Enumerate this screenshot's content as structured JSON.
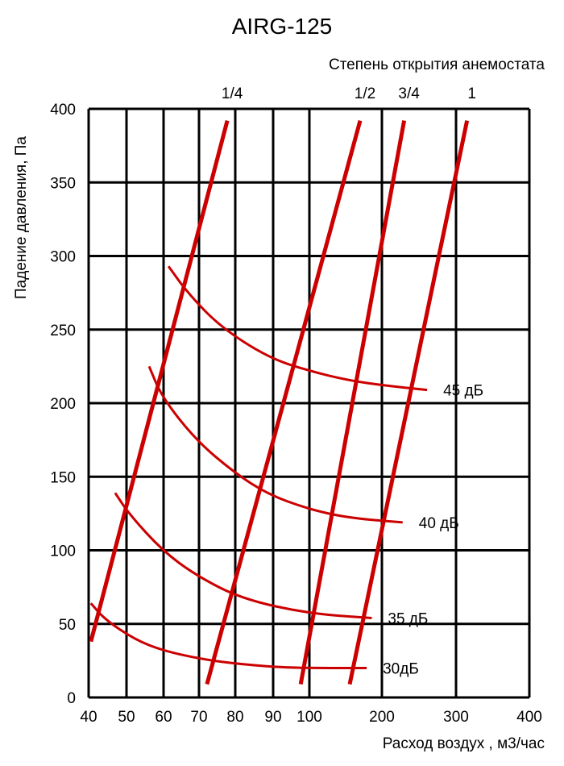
{
  "chart_data": {
    "type": "line",
    "title": "AIRG-125",
    "subtitle": "Степень открытия анемостата",
    "xlabel": "Расход воздух , м3/час",
    "ylabel": "Падение давления, Па",
    "x_ticks": [
      40,
      50,
      60,
      70,
      80,
      90,
      100,
      200,
      300,
      400
    ],
    "x_tick_labels": [
      "40",
      "50",
      "60",
      "70",
      "80",
      "90",
      "100",
      "200",
      "300",
      "400"
    ],
    "y_ticks": [
      0,
      50,
      100,
      150,
      200,
      250,
      300,
      350,
      400
    ],
    "y_tick_labels": [
      "0",
      "50",
      "100",
      "150",
      "200",
      "250",
      "300",
      "350",
      "400"
    ],
    "xlim": [
      40,
      400
    ],
    "ylim": [
      0,
      400
    ],
    "grid": true,
    "line_color": "#cc0000",
    "opening_series": [
      {
        "name": "1/4",
        "points": [
          [
            40.6,
            38
          ],
          [
            77.8,
            392
          ]
        ]
      },
      {
        "name": "1/2",
        "points": [
          [
            72.2,
            9
          ],
          [
            170,
            392
          ]
        ]
      },
      {
        "name": "3/4",
        "points": [
          [
            97.6,
            9
          ],
          [
            230,
            392
          ]
        ]
      },
      {
        "name": "1",
        "points": [
          [
            155.6,
            9
          ],
          [
            315,
            392
          ]
        ]
      }
    ],
    "noise_series": [
      {
        "name": "45 дБ",
        "points": [
          [
            61.4,
            293
          ],
          [
            66.8,
            275
          ],
          [
            75.8,
            252
          ],
          [
            88.7,
            231
          ],
          [
            99.8,
            222
          ],
          [
            154,
            215.5
          ],
          [
            203,
            212
          ],
          [
            261,
            209
          ]
        ]
      },
      {
        "name": "40 дБ",
        "points": [
          [
            56.1,
            225
          ],
          [
            59.6,
            204
          ],
          [
            69.1,
            175
          ],
          [
            79.6,
            153
          ],
          [
            88.7,
            138
          ],
          [
            99.8,
            128
          ],
          [
            154,
            122
          ],
          [
            228,
            119
          ]
        ]
      },
      {
        "name": "35 дБ",
        "points": [
          [
            47,
            139
          ],
          [
            50.6,
            125
          ],
          [
            59.6,
            100
          ],
          [
            69.1,
            83
          ],
          [
            81.7,
            67
          ],
          [
            99.8,
            57
          ],
          [
            186,
            54
          ]
        ]
      },
      {
        "name": "30дБ",
        "points": [
          [
            40.6,
            64
          ],
          [
            44.3,
            53
          ],
          [
            52.2,
            39.5
          ],
          [
            59.6,
            32
          ],
          [
            70.7,
            26
          ],
          [
            81.7,
            22.5
          ],
          [
            95,
            20
          ],
          [
            179,
            20
          ]
        ]
      }
    ]
  }
}
